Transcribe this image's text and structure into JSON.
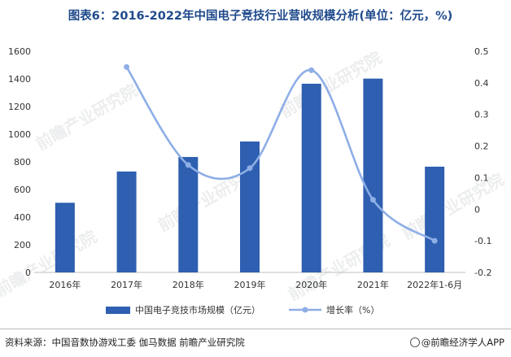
{
  "title": "图表6：2016-2022年中国电子竞技行业营收规模分析(单位：亿元，%)",
  "chart_data": {
    "type": "bar",
    "categories": [
      "2016年",
      "2017年",
      "2018年",
      "2019年",
      "2020年",
      "2021年",
      "2022年1-6月"
    ],
    "series": [
      {
        "name": "中国电子竞技市场规模（亿元）",
        "type": "bar",
        "axis": "left",
        "color": "#2e5fb0",
        "values": [
          504,
          730,
          835,
          947,
          1365,
          1402,
          765
        ]
      },
      {
        "name": "增长率（%）",
        "type": "line",
        "axis": "right",
        "color": "#8eaee6",
        "values": [
          null,
          0.45,
          0.14,
          0.13,
          0.44,
          0.03,
          -0.1
        ]
      }
    ],
    "y_left": {
      "min": 0,
      "max": 1600,
      "ticks": [
        "0",
        "200",
        "400",
        "600",
        "800",
        "1000",
        "1200",
        "1400",
        "1600"
      ]
    },
    "y_right": {
      "min": -0.2,
      "max": 0.5,
      "ticks": [
        "-0.2",
        "-0.1",
        "0",
        "0.1",
        "0.2",
        "0.3",
        "0.4",
        "0.5"
      ]
    },
    "grid": false,
    "legend_position": "bottom"
  },
  "watermark": "前瞻产业研究院",
  "footer": {
    "source": "资料来源：中国音数协游戏工委 伽马数据 前瞻产业研究院",
    "publisher": "@前瞻经济学人APP"
  }
}
